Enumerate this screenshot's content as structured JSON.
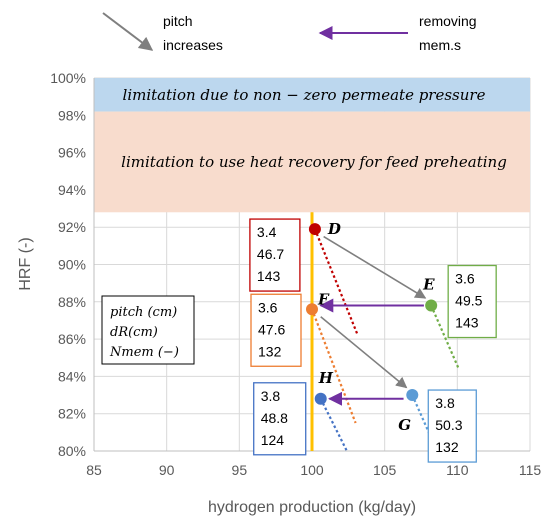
{
  "chart_data": {
    "type": "scatter",
    "xlabel": "hydrogen production (kg/day)",
    "ylabel": "HRF (-)",
    "xlim": [
      85,
      115
    ],
    "ylim": [
      80,
      100
    ],
    "x_ticks": [
      "85",
      "90",
      "95",
      "100",
      "105",
      "110",
      "115"
    ],
    "y_ticks": [
      "80%",
      "82%",
      "84%",
      "86%",
      "88%",
      "90%",
      "92%",
      "94%",
      "96%",
      "98%",
      "100%"
    ],
    "bands": [
      {
        "label": "limitation due to non − zero permeate pressure",
        "y_from": 98.2,
        "y_to": 100,
        "color": "#bcd7ee"
      },
      {
        "label": "limitation to use heat recovery for feed preheating",
        "y_from": 92.8,
        "y_to": 98.2,
        "color": "#f8dccd"
      }
    ],
    "vertical_line": {
      "x": 100,
      "color": "#ffc000"
    },
    "points": [
      {
        "name": "D",
        "x": 100.2,
        "y": 91.9,
        "color": "#c00000",
        "values": [
          "3.4",
          "46.7",
          "143"
        ]
      },
      {
        "name": "E",
        "x": 108.2,
        "y": 87.8,
        "color": "#70ad47",
        "values": [
          "3.6",
          "49.5",
          "143"
        ]
      },
      {
        "name": "F",
        "x": 100.0,
        "y": 87.6,
        "color": "#ed7d31",
        "values": [
          "3.6",
          "47.6",
          "132"
        ]
      },
      {
        "name": "G",
        "x": 106.9,
        "y": 83.0,
        "color": "#5b9bd5",
        "values": [
          "3.8",
          "50.3",
          "132"
        ]
      },
      {
        "name": "H",
        "x": 100.6,
        "y": 82.8,
        "color": "#4472c4",
        "values": [
          "3.8",
          "48.8",
          "124"
        ]
      }
    ],
    "dotted_trends": [
      {
        "color": "#c00000",
        "from": [
          100.2,
          91.9
        ],
        "to": [
          103.1,
          86.3
        ]
      },
      {
        "color": "#70ad47",
        "from": [
          108.2,
          87.8
        ],
        "to": [
          110.1,
          84.4
        ]
      },
      {
        "color": "#ed7d31",
        "from": [
          100.0,
          87.6
        ],
        "to": [
          103.0,
          81.5
        ]
      },
      {
        "color": "#5b9bd5",
        "from": [
          106.9,
          83.0
        ],
        "to": [
          108.6,
          80.0
        ]
      },
      {
        "color": "#4472c4",
        "from": [
          100.6,
          82.8
        ],
        "to": [
          102.4,
          80.0
        ]
      }
    ],
    "pitch_arrows": [
      {
        "from": [
          100.8,
          91.5
        ],
        "to": [
          107.8,
          88.2
        ]
      },
      {
        "from": [
          100.6,
          87.2
        ],
        "to": [
          106.5,
          83.4
        ]
      }
    ],
    "removing_arrows": [
      {
        "from": [
          107.7,
          87.8
        ],
        "to": [
          100.6,
          87.8
        ]
      },
      {
        "from": [
          106.3,
          82.8
        ],
        "to": [
          101.2,
          82.8
        ]
      }
    ],
    "legend_labels": [
      "pitch (cm)",
      "dR(cm)",
      "Nmem (−)"
    ],
    "grid": true
  },
  "annotations": {
    "pitch": [
      "pitch",
      "increases"
    ],
    "removing": [
      "removing",
      "mem.s"
    ]
  },
  "colors": {
    "arrow_pitch": "#7f7f7f",
    "arrow_removing": "#7030a0",
    "grid": "#d9d9d9",
    "axis": "#bfbfbf"
  }
}
